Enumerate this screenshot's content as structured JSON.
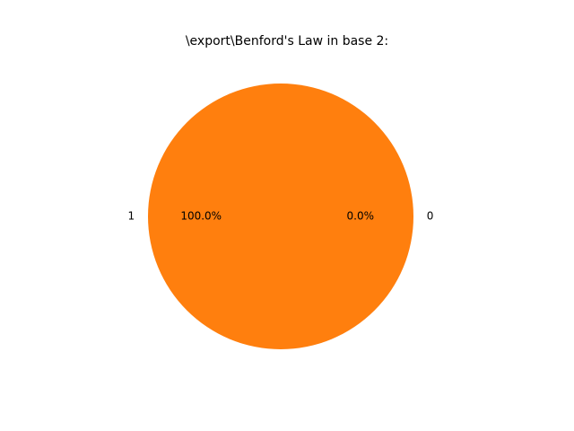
{
  "chart_data": {
    "type": "pie",
    "title": "\\export\\Benford's Law in base 2:",
    "slices": [
      {
        "label": "0",
        "value": 0.0,
        "pct_label": "0.0%",
        "color": "#1f77b4"
      },
      {
        "label": "1",
        "value": 100.0,
        "pct_label": "100.0%",
        "color": "#ff7f0e"
      }
    ],
    "legend": "none"
  }
}
